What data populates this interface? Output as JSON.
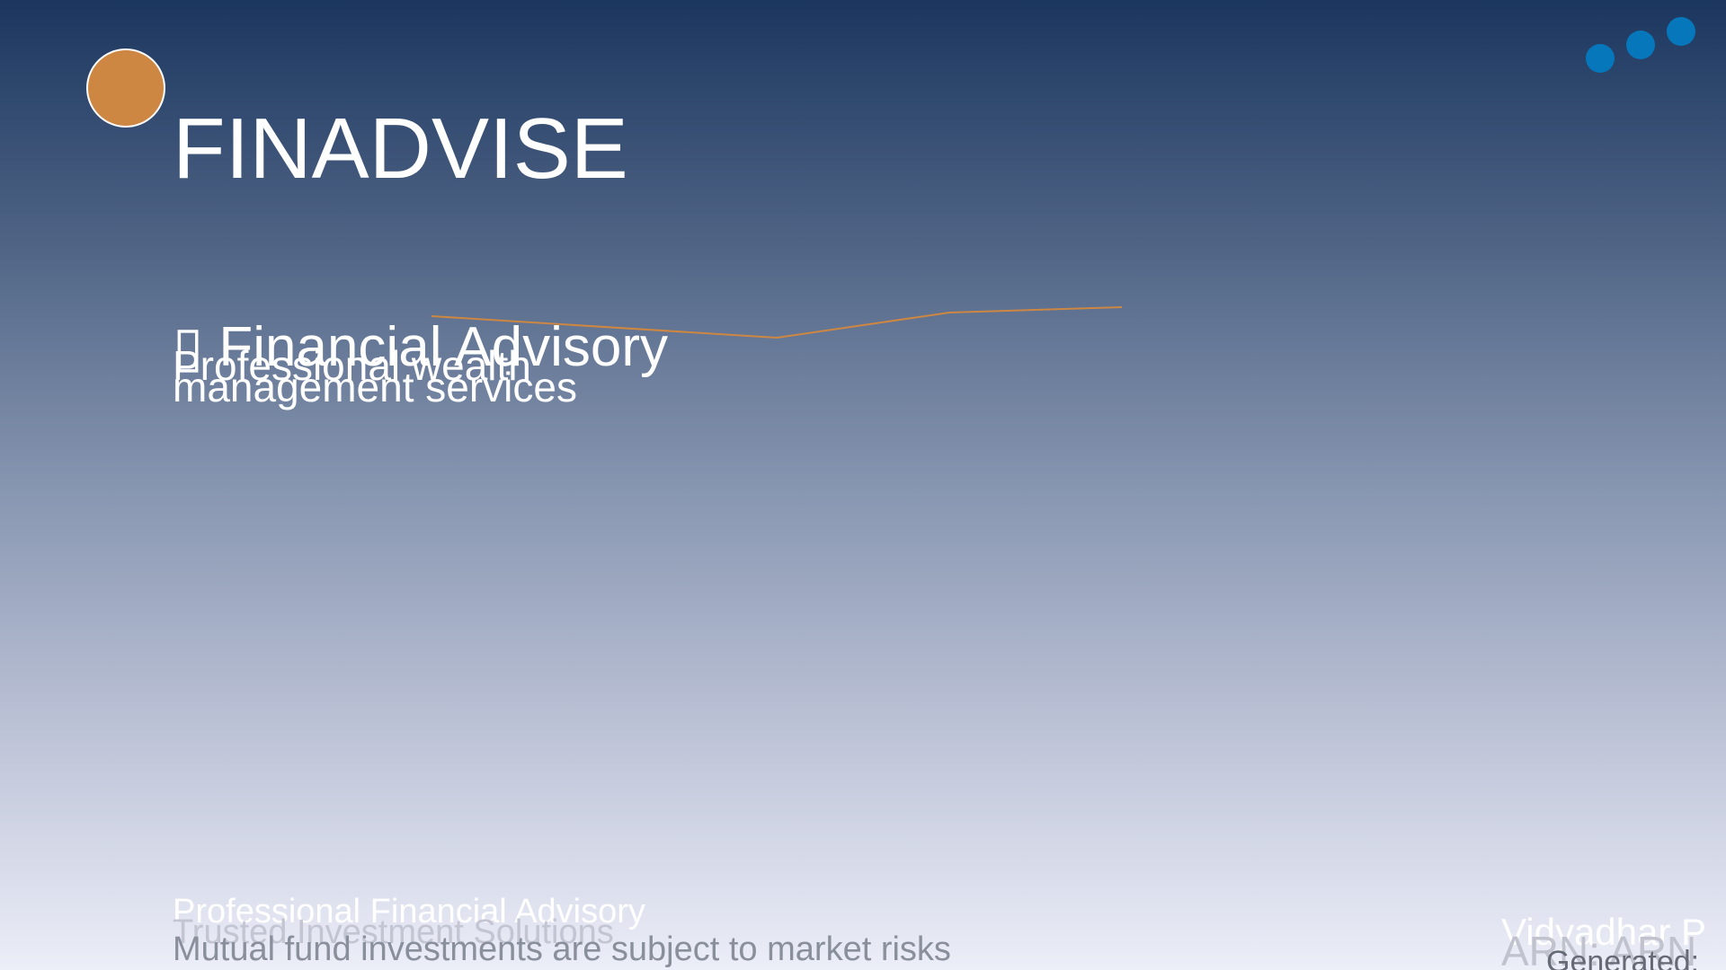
{
  "header": {
    "brand": "FINADVISE",
    "logo_color": "#cd8742",
    "dots_color": "#0777bb"
  },
  "service": {
    "icon": "broken-glyph-icon",
    "title": "▯ Financial Advisory",
    "description": "Professional wealth management services"
  },
  "trend_line": {
    "color": "#cd8742"
  },
  "footer": {
    "tagline": "Professional Financial Advisory",
    "subtitle": "Trusted Investment Solutions",
    "disclaimer": "Mutual fund investments are subject to market risks",
    "advisor_name": "Vidyadhar P",
    "advisor_arn": "ARN: ARN",
    "generated": "Generated:"
  }
}
